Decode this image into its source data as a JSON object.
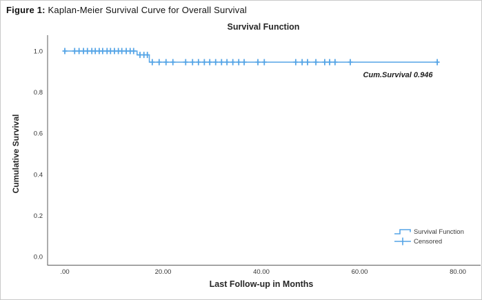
{
  "figure_caption": {
    "prefix": "Figure 1:",
    "text": " Kaplan-Meier Survival Curve for Overall Survival"
  },
  "chart": {
    "title": "Survival Function",
    "annotation": "Cum.Survival 0.946",
    "x_axis_title": "Last Follow-up in Months",
    "y_axis_title": "Cumulative Survival",
    "legend": {
      "survival_label": "Survival Function",
      "censored_label": "Censored"
    },
    "colors": {
      "series": "#54a4e6",
      "axis": "#595959",
      "tick_text": "#333333",
      "title_text": "#262626"
    }
  },
  "chart_data": {
    "type": "line",
    "subtype": "kaplan-meier-step",
    "title": "Survival Function",
    "xlabel": "Last Follow-up in Months",
    "ylabel": "Cumulative Survival",
    "xlim": [
      -3.5,
      85
    ],
    "ylim": [
      -0.042,
      1.078
    ],
    "grid": false,
    "legend_position": "lower right",
    "xticks": [
      {
        "value": 0,
        "label": ".00"
      },
      {
        "value": 20,
        "label": "20.00"
      },
      {
        "value": 40,
        "label": "40.00"
      },
      {
        "value": 60,
        "label": "60.00"
      },
      {
        "value": 80,
        "label": "80.00"
      }
    ],
    "yticks": [
      {
        "value": 1.0,
        "label": "1.0"
      },
      {
        "value": 0.8,
        "label": "0.8"
      },
      {
        "value": 0.6,
        "label": "0.6"
      },
      {
        "value": 0.4,
        "label": "0.4"
      },
      {
        "value": 0.2,
        "label": "0.2"
      },
      {
        "value": 0.0,
        "label": "0.0"
      }
    ],
    "series": [
      {
        "name": "Survival Function",
        "steps": [
          {
            "t_start": 0.0,
            "t_end": 14.7,
            "survival": 1.0
          },
          {
            "t_start": 14.7,
            "t_end": 17.2,
            "survival": 0.981
          },
          {
            "t_start": 17.2,
            "t_end": 75.8,
            "survival": 0.946
          }
        ],
        "event_times": [
          14.7,
          17.2
        ],
        "final_cumulative_survival": 0.946
      }
    ],
    "censored": [
      [
        0.0,
        1.0
      ],
      [
        2.0,
        1.0
      ],
      [
        2.9,
        1.0
      ],
      [
        3.8,
        1.0
      ],
      [
        4.6,
        1.0
      ],
      [
        5.5,
        1.0
      ],
      [
        6.2,
        1.0
      ],
      [
        7.0,
        1.0
      ],
      [
        7.7,
        1.0
      ],
      [
        8.6,
        1.0
      ],
      [
        9.3,
        1.0
      ],
      [
        10.1,
        1.0
      ],
      [
        10.9,
        1.0
      ],
      [
        11.6,
        1.0
      ],
      [
        12.5,
        1.0
      ],
      [
        13.3,
        1.0
      ],
      [
        14.0,
        1.0
      ],
      [
        15.3,
        0.981
      ],
      [
        16.1,
        0.981
      ],
      [
        16.8,
        0.981
      ],
      [
        17.8,
        0.946
      ],
      [
        19.2,
        0.946
      ],
      [
        20.6,
        0.946
      ],
      [
        22.0,
        0.946
      ],
      [
        24.6,
        0.946
      ],
      [
        26.0,
        0.946
      ],
      [
        27.2,
        0.946
      ],
      [
        28.4,
        0.946
      ],
      [
        29.5,
        0.946
      ],
      [
        30.7,
        0.946
      ],
      [
        31.9,
        0.946
      ],
      [
        33.0,
        0.946
      ],
      [
        34.2,
        0.946
      ],
      [
        35.4,
        0.946
      ],
      [
        36.5,
        0.946
      ],
      [
        39.3,
        0.946
      ],
      [
        40.6,
        0.946
      ],
      [
        47.0,
        0.946
      ],
      [
        48.3,
        0.946
      ],
      [
        49.4,
        0.946
      ],
      [
        51.1,
        0.946
      ],
      [
        52.9,
        0.946
      ],
      [
        53.9,
        0.946
      ],
      [
        55.0,
        0.946
      ],
      [
        58.1,
        0.946
      ],
      [
        75.8,
        0.946
      ]
    ],
    "annotation": {
      "text": "Cum.Survival 0.946",
      "value": 0.946
    }
  }
}
